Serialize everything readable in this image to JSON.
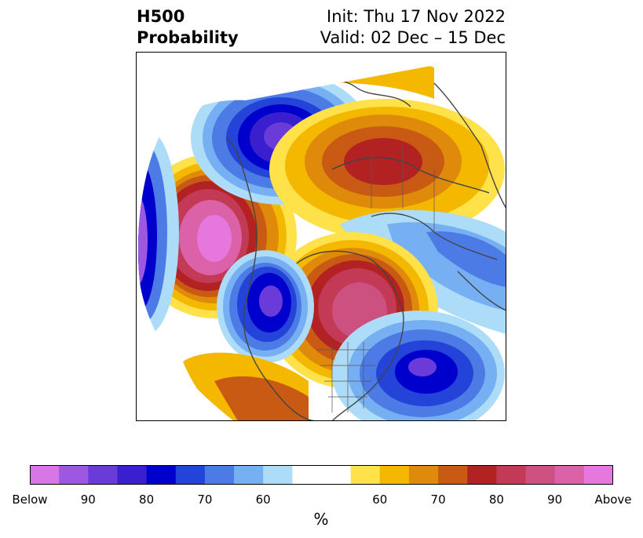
{
  "header": {
    "title_line1": "H500",
    "title_line2": "Probability",
    "init": "Init: Thu 17 Nov 2022",
    "valid": "Valid: 02 Dec – 15 Dec"
  },
  "colorbar": {
    "unit": "%",
    "colors": [
      "#d876e6",
      "#9c58e0",
      "#6a3bd9",
      "#3a1fcf",
      "#0000cc",
      "#2443d8",
      "#4c7be6",
      "#77b0f2",
      "#acdcf7",
      "#ffffff",
      "#ffe14a",
      "#f4b800",
      "#e08a0c",
      "#c85a14",
      "#b22222",
      "#c23a55",
      "#cc5080",
      "#db62a8",
      "#e677dc"
    ],
    "tick_labels": [
      "Below",
      "90",
      "80",
      "70",
      "60",
      "60",
      "70",
      "80",
      "90",
      "Above"
    ]
  }
}
